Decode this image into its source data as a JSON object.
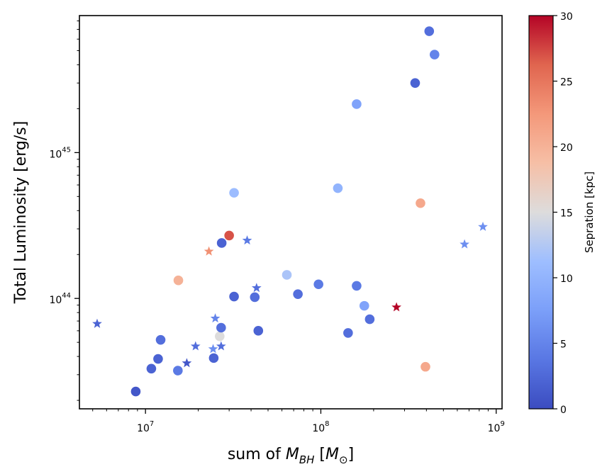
{
  "chart_data": {
    "type": "scatter",
    "title": "",
    "xlabel": {
      "prefix": "sum of ",
      "symbol": "M",
      "subscript": "BH",
      "unit_open": " [",
      "unit_symbol": "M",
      "unit_sub": "⊙",
      "unit_close": "]"
    },
    "ylabel": "Total Luminosity [erg/s]",
    "xscale": "log",
    "yscale": "log",
    "xlim": [
      4200000.0,
      1080000000.0
    ],
    "ylim": [
      1.75e+43,
      8.7e+45
    ],
    "xticks": [
      {
        "value": 10000000.0,
        "base": "10",
        "exp": "7"
      },
      {
        "value": 100000000.0,
        "base": "10",
        "exp": "8"
      },
      {
        "value": 1000000000.0,
        "base": "10",
        "exp": "9"
      }
    ],
    "yticks": [
      {
        "value": 1e+44,
        "base": "10",
        "exp": "44"
      },
      {
        "value": 1e+45,
        "base": "10",
        "exp": "45"
      }
    ],
    "colorbar": {
      "label": "Sepration [kpc]",
      "colormap": "coolwarm",
      "range": [
        0,
        30
      ],
      "ticks": [
        "0",
        "5",
        "10",
        "15",
        "20",
        "25",
        "30"
      ]
    },
    "series": [
      {
        "name": "circles",
        "marker": "circle",
        "points": [
          {
            "x": 8800000.0,
            "y": 2.3e+43,
            "c": 1
          },
          {
            "x": 10800000.0,
            "y": 3.3e+43,
            "c": 2
          },
          {
            "x": 11800000.0,
            "y": 3.85e+43,
            "c": 2
          },
          {
            "x": 12200000.0,
            "y": 5.2e+43,
            "c": 3
          },
          {
            "x": 15300000.0,
            "y": 3.2e+43,
            "c": 4
          },
          {
            "x": 15400000.0,
            "y": 1.33e+44,
            "c": 20
          },
          {
            "x": 24500000.0,
            "y": 3.9e+43,
            "c": 2
          },
          {
            "x": 26500000.0,
            "y": 5.5e+43,
            "c": 15
          },
          {
            "x": 27000000.0,
            "y": 6.3e+43,
            "c": 3
          },
          {
            "x": 27200000.0,
            "y": 2.4e+44,
            "c": 2
          },
          {
            "x": 30000000.0,
            "y": 2.7e+44,
            "c": 27
          },
          {
            "x": 32000000.0,
            "y": 5.3e+44,
            "c": 11
          },
          {
            "x": 32000000.0,
            "y": 1.03e+44,
            "c": 2
          },
          {
            "x": 42000000.0,
            "y": 1.02e+44,
            "c": 3
          },
          {
            "x": 44000000.0,
            "y": 6e+43,
            "c": 2
          },
          {
            "x": 64000000.0,
            "y": 1.45e+44,
            "c": 12
          },
          {
            "x": 74000000.0,
            "y": 1.07e+44,
            "c": 3
          },
          {
            "x": 97000000.0,
            "y": 1.25e+44,
            "c": 4
          },
          {
            "x": 125000000.0,
            "y": 5.7e+44,
            "c": 10
          },
          {
            "x": 143000000.0,
            "y": 5.8e+43,
            "c": 3
          },
          {
            "x": 160000000.0,
            "y": 2.15e+45,
            "c": 8
          },
          {
            "x": 160000000.0,
            "y": 1.22e+44,
            "c": 4
          },
          {
            "x": 177000000.0,
            "y": 8.9e+43,
            "c": 8
          },
          {
            "x": 190000000.0,
            "y": 7.2e+43,
            "c": 3
          },
          {
            "x": 345000000.0,
            "y": 3e+45,
            "c": 2
          },
          {
            "x": 370000000.0,
            "y": 4.5e+44,
            "c": 21
          },
          {
            "x": 395000000.0,
            "y": 3.4e+43,
            "c": 21
          },
          {
            "x": 415000000.0,
            "y": 6.8e+45,
            "c": 3
          },
          {
            "x": 445000000.0,
            "y": 4.7e+45,
            "c": 5
          }
        ]
      },
      {
        "name": "stars",
        "marker": "star",
        "points": [
          {
            "x": 5300000.0,
            "y": 6.7e+43,
            "c": 2
          },
          {
            "x": 17200000.0,
            "y": 3.6e+43,
            "c": 1
          },
          {
            "x": 19300000.0,
            "y": 4.7e+43,
            "c": 3
          },
          {
            "x": 23000000.0,
            "y": 2.1e+44,
            "c": 23
          },
          {
            "x": 24300000.0,
            "y": 4.5e+43,
            "c": 6
          },
          {
            "x": 25000000.0,
            "y": 7.3e+43,
            "c": 5
          },
          {
            "x": 27000000.0,
            "y": 4.7e+43,
            "c": 3
          },
          {
            "x": 38000000.0,
            "y": 2.5e+44,
            "c": 4
          },
          {
            "x": 43000000.0,
            "y": 1.18e+44,
            "c": 3
          },
          {
            "x": 270000000.0,
            "y": 8.7e+43,
            "c": 30
          },
          {
            "x": 660000000.0,
            "y": 2.35e+44,
            "c": 6
          },
          {
            "x": 840000000.0,
            "y": 3.1e+44,
            "c": 6
          }
        ]
      }
    ]
  }
}
